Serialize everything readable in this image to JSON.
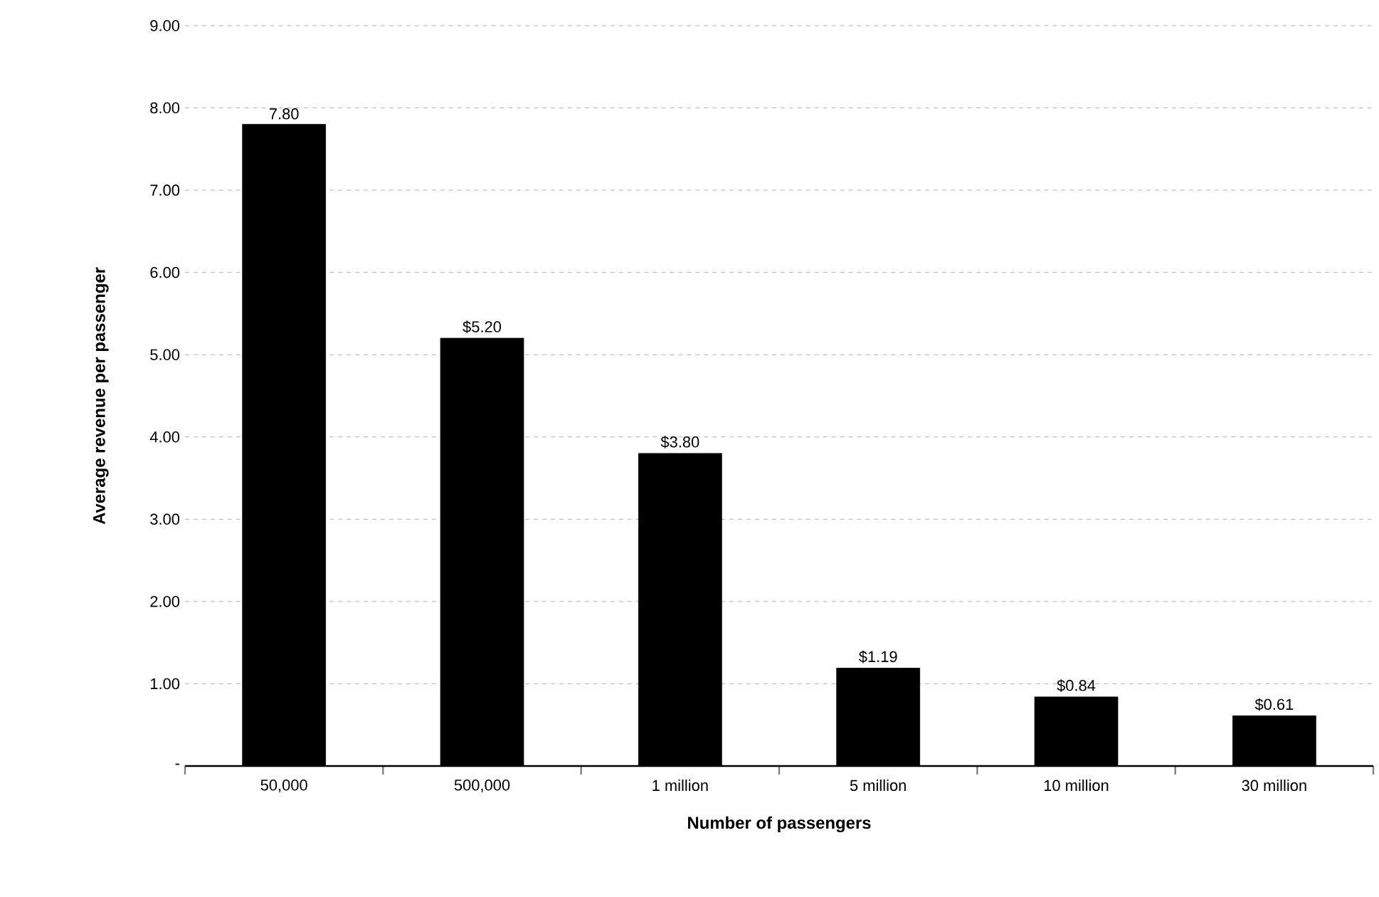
{
  "chart_data": {
    "type": "bar",
    "xlabel": "Number of passengers",
    "ylabel": "Average revenue per passenger",
    "categories": [
      "50,000",
      "500,000",
      "1 million",
      "5 million",
      "10 million",
      "30 million"
    ],
    "values": [
      7.8,
      5.2,
      3.8,
      1.19,
      0.84,
      0.61
    ],
    "value_labels": [
      "7.80",
      "$5.20",
      "$3.80",
      "$1.19",
      "$0.84",
      "$0.61"
    ],
    "color": "#000000",
    "ylim": [
      0,
      9
    ],
    "yticks": [
      {
        "value": 0,
        "label": "-"
      },
      {
        "value": 1,
        "label": "1.00"
      },
      {
        "value": 2,
        "label": "2.00"
      },
      {
        "value": 3,
        "label": "3.00"
      },
      {
        "value": 4,
        "label": "4.00"
      },
      {
        "value": 5,
        "label": "5.00"
      },
      {
        "value": 6,
        "label": "6.00"
      },
      {
        "value": 7,
        "label": "7.00"
      },
      {
        "value": 8,
        "label": "8.00"
      },
      {
        "value": 9,
        "label": "9.00"
      }
    ],
    "grid": "y"
  }
}
